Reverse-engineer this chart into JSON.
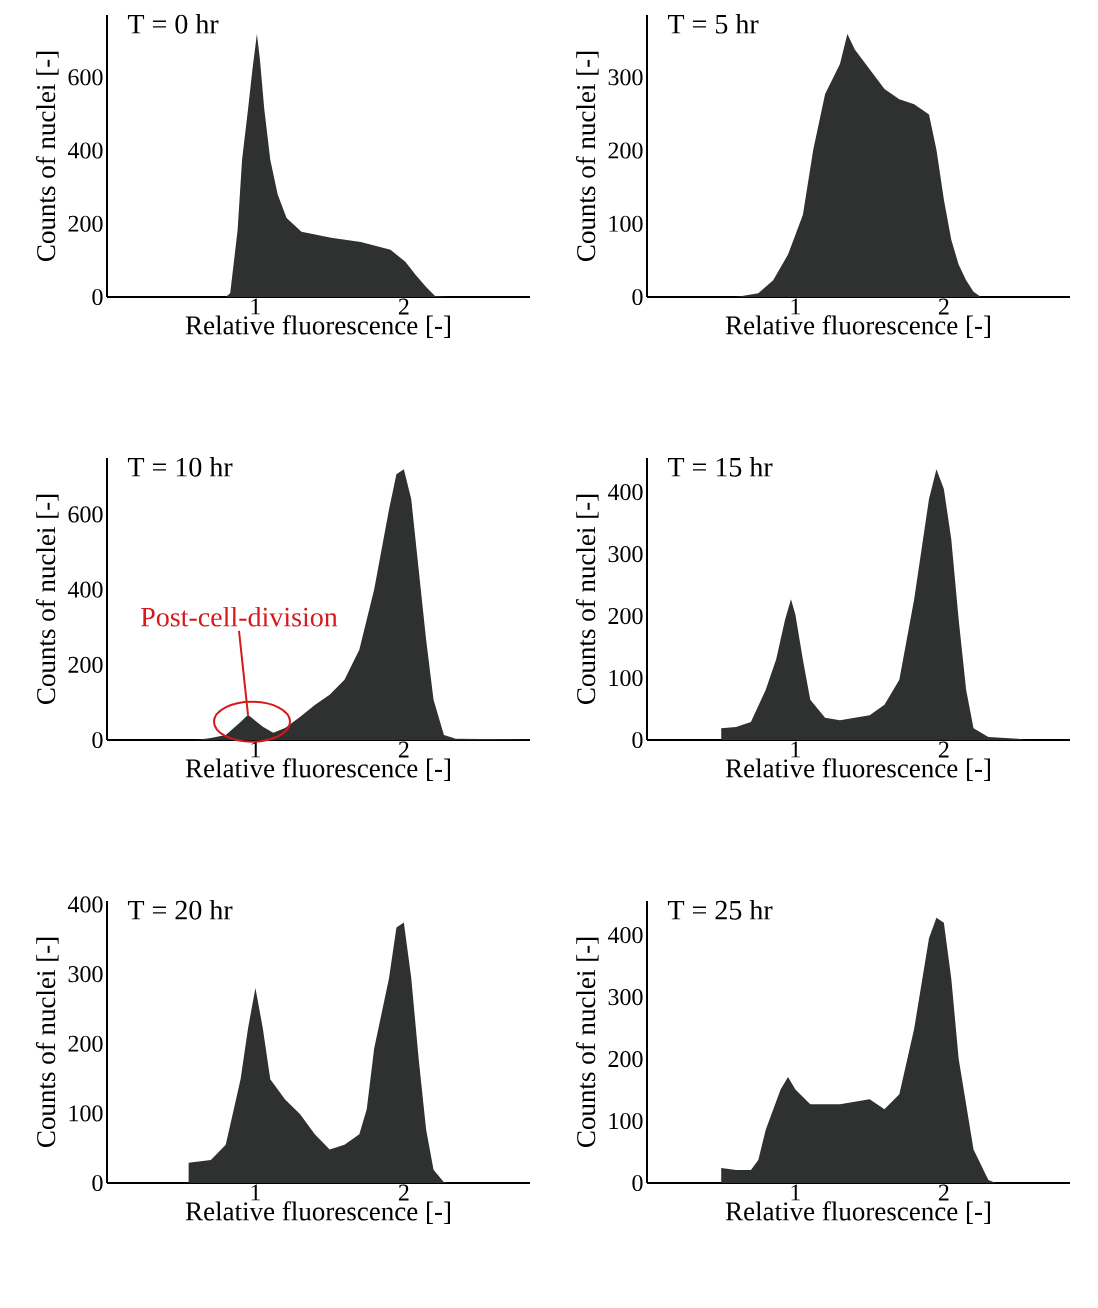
{
  "chart_data": [
    {
      "type": "area",
      "title": "T = 0 hr",
      "xlabel": "Relative fluorescence [-]",
      "ylabel": "Counts of nuclei [-]",
      "color": "#2f3030",
      "xlim": [
        0,
        2.85
      ],
      "ylim": [
        0,
        770
      ],
      "xticks": [
        1,
        2
      ],
      "yticks": [
        0,
        200,
        400,
        600
      ],
      "x": [
        0,
        0.8,
        0.83,
        0.88,
        0.91,
        0.95,
        0.98,
        1.01,
        1.03,
        1.06,
        1.1,
        1.15,
        1.21,
        1.31,
        1.51,
        1.71,
        1.91,
        2.01,
        2.08,
        2.15,
        2.21,
        2.3,
        2.85
      ],
      "values": [
        0,
        0,
        10,
        183,
        375,
        512,
        622,
        718,
        650,
        512,
        375,
        280,
        216,
        178,
        162,
        150,
        129,
        96,
        60,
        27,
        3,
        0,
        0
      ]
    },
    {
      "type": "area",
      "title": "T = 5 hr",
      "xlabel": "Relative fluorescence [-]",
      "ylabel": "Counts of nuclei [-]",
      "color": "#2f3030",
      "xlim": [
        0,
        2.85
      ],
      "ylim": [
        0,
        385
      ],
      "xticks": [
        1,
        2
      ],
      "yticks": [
        0,
        100,
        200,
        300
      ],
      "x": [
        0,
        0.6,
        0.75,
        0.85,
        0.95,
        1.05,
        1.12,
        1.2,
        1.3,
        1.35,
        1.4,
        1.5,
        1.6,
        1.7,
        1.8,
        1.9,
        1.95,
        2.0,
        2.05,
        2.1,
        2.15,
        2.2,
        2.25,
        2.85
      ],
      "values": [
        0,
        0,
        5,
        23,
        58,
        112,
        201,
        277,
        318,
        359,
        338,
        311,
        284,
        270,
        263,
        249,
        201,
        133,
        78,
        44,
        23,
        7,
        0,
        0
      ]
    },
    {
      "type": "area",
      "title": "T = 10 hr",
      "xlabel": "Relative fluorescence [-]",
      "ylabel": "Counts of nuclei [-]",
      "color": "#2f3030",
      "xlim": [
        0,
        2.85
      ],
      "ylim": [
        0,
        750
      ],
      "xticks": [
        1,
        2
      ],
      "yticks": [
        0,
        200,
        400,
        600
      ],
      "x": [
        0,
        0.6,
        0.7,
        0.8,
        0.9,
        0.95,
        1.05,
        1.12,
        1.2,
        1.3,
        1.4,
        1.5,
        1.6,
        1.7,
        1.8,
        1.9,
        1.95,
        2.0,
        2.05,
        2.1,
        2.15,
        2.2,
        2.27,
        2.35,
        2.7,
        2.85
      ],
      "values": [
        0,
        0,
        5,
        13,
        48,
        67,
        35,
        19,
        32,
        61,
        93,
        120,
        160,
        240,
        400,
        613,
        707,
        720,
        640,
        453,
        267,
        107,
        13,
        3,
        2,
        0
      ],
      "annotations": [
        {
          "text": "Post-cell-division",
          "x": 0.95,
          "y": 67
        }
      ]
    },
    {
      "type": "area",
      "title": "T = 15 hr",
      "xlabel": "Relative fluorescence [-]",
      "ylabel": "Counts of nuclei [-]",
      "color": "#2f3030",
      "xlim": [
        0,
        2.85
      ],
      "ylim": [
        0,
        455
      ],
      "xticks": [
        1,
        2
      ],
      "yticks": [
        0,
        100,
        200,
        300,
        400
      ],
      "x": [
        0.5,
        0.6,
        0.7,
        0.8,
        0.87,
        0.93,
        0.97,
        1.0,
        1.05,
        1.1,
        1.2,
        1.3,
        1.4,
        1.5,
        1.6,
        1.7,
        1.8,
        1.9,
        1.95,
        2.0,
        2.05,
        2.1,
        2.15,
        2.2,
        2.3,
        2.5,
        2.55
      ],
      "values": [
        19,
        21,
        29,
        81,
        130,
        194,
        227,
        202,
        130,
        65,
        36,
        32,
        36,
        40,
        57,
        97,
        227,
        389,
        437,
        405,
        324,
        194,
        81,
        19,
        5,
        2,
        0
      ]
    },
    {
      "type": "area",
      "title": "T = 20 hr",
      "xlabel": "Relative fluorescence [-]",
      "ylabel": "Counts of nuclei [-]",
      "color": "#2f3030",
      "xlim": [
        0,
        2.85
      ],
      "ylim": [
        0,
        405
      ],
      "xticks": [
        1,
        2
      ],
      "yticks": [
        0,
        100,
        200,
        300,
        400
      ],
      "x": [
        0.55,
        0.7,
        0.8,
        0.9,
        0.95,
        1.0,
        1.05,
        1.1,
        1.2,
        1.3,
        1.4,
        1.5,
        1.6,
        1.7,
        1.75,
        1.8,
        1.9,
        1.95,
        2.0,
        2.05,
        2.1,
        2.15,
        2.2,
        2.27,
        2.3
      ],
      "values": [
        29,
        33,
        55,
        149,
        222,
        280,
        222,
        149,
        120,
        99,
        70,
        48,
        55,
        70,
        106,
        193,
        294,
        367,
        374,
        294,
        178,
        77,
        19,
        1,
        0
      ]
    },
    {
      "type": "area",
      "title": "T = 25 hr",
      "xlabel": "Relative fluorescence [-]",
      "ylabel": "Counts of nuclei [-]",
      "color": "#2f3030",
      "xlim": [
        0,
        2.85
      ],
      "ylim": [
        0,
        455
      ],
      "xticks": [
        1,
        2
      ],
      "yticks": [
        0,
        100,
        200,
        300,
        400
      ],
      "x": [
        0.5,
        0.6,
        0.7,
        0.75,
        0.8,
        0.9,
        0.95,
        1.0,
        1.1,
        1.3,
        1.5,
        1.6,
        1.7,
        1.8,
        1.9,
        1.95,
        2.0,
        2.05,
        2.1,
        2.2,
        2.3,
        2.35
      ],
      "values": [
        24,
        21,
        21,
        37,
        86,
        151,
        171,
        151,
        127,
        127,
        135,
        119,
        143,
        249,
        395,
        428,
        420,
        330,
        200,
        54,
        5,
        0
      ]
    }
  ]
}
